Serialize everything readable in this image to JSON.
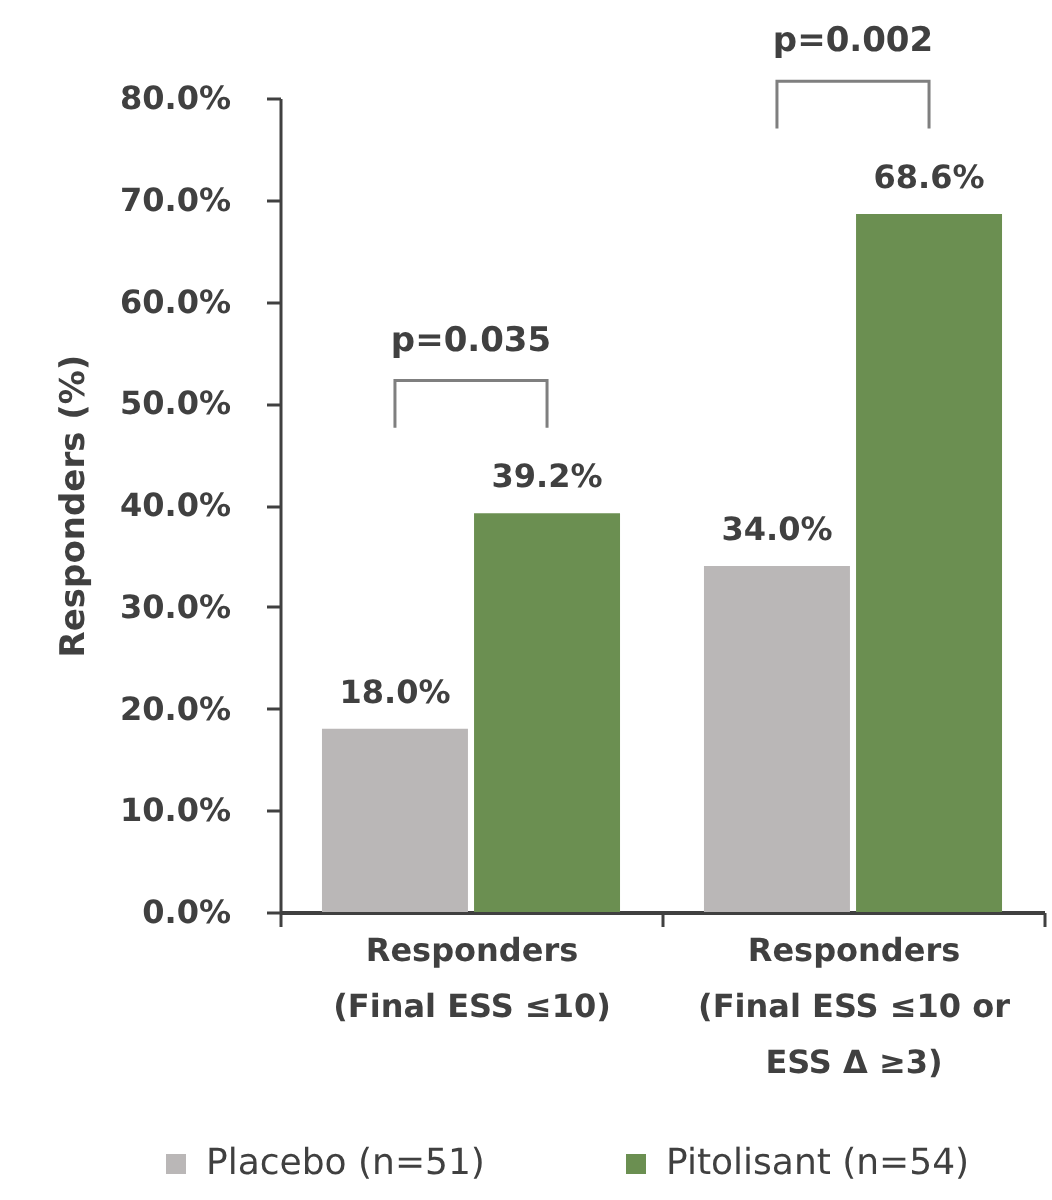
{
  "chart_data": {
    "type": "bar",
    "ylabel": "Responders (%)",
    "categories": [
      "Responders\n(Final ESS ≤10)",
      "Responders\n(Final ESS ≤10 or\nESS Δ ≥3)"
    ],
    "series": [
      {
        "name": "Placebo (n=51)",
        "color": "#bab7b7",
        "values": [
          18.0,
          34.0
        ],
        "value_labels": [
          "18.0%",
          "34.0%"
        ]
      },
      {
        "name": "Pitolisant (n=54)",
        "color": "#6b8f51",
        "values": [
          39.2,
          68.6
        ],
        "value_labels": [
          "39.2%",
          "68.6%"
        ]
      }
    ],
    "ylim": [
      0,
      80
    ],
    "yticks": [
      {
        "value": 0,
        "label": "0.0%"
      },
      {
        "value": 10,
        "label": "10.0%"
      },
      {
        "value": 20,
        "label": "20.0%"
      },
      {
        "value": 30,
        "label": "30.0%"
      },
      {
        "value": 40,
        "label": "40.0%"
      },
      {
        "value": 50,
        "label": "50.0%"
      },
      {
        "value": 60,
        "label": "60.0%"
      },
      {
        "value": 70,
        "label": "70.0%"
      },
      {
        "value": 80,
        "label": "80.0%"
      }
    ],
    "annotations": [
      "p=0.035",
      "p=0.002"
    ],
    "legend": "bottom"
  }
}
